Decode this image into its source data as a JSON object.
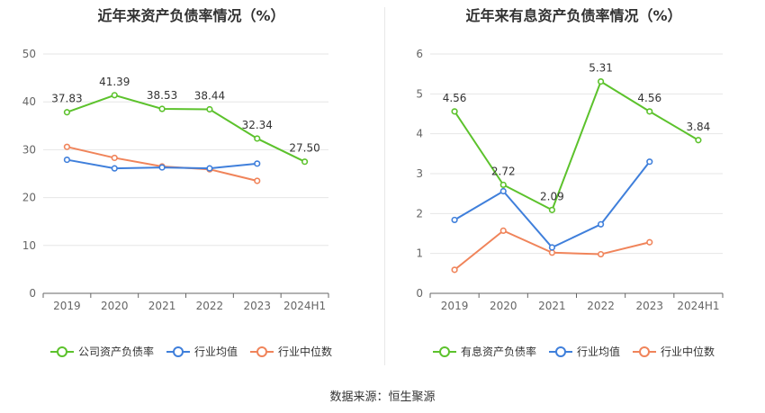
{
  "source": "数据来源：恒生聚源",
  "chart_data": [
    {
      "type": "line",
      "title": "近年来资产负债率情况（%）",
      "categories": [
        "2019",
        "2020",
        "2021",
        "2022",
        "2023",
        "2024H1"
      ],
      "ylim": [
        0,
        50
      ],
      "yticks": [
        0,
        10,
        20,
        30,
        40,
        50
      ],
      "grid": true,
      "legend_position": "bottom",
      "series": [
        {
          "name": "公司资产负债率",
          "color": "#5cc22c",
          "values": [
            37.83,
            41.39,
            38.53,
            38.44,
            32.34,
            27.5
          ],
          "labels": [
            "37.83",
            "41.39",
            "38.53",
            "38.44",
            "32.34",
            "27.50"
          ]
        },
        {
          "name": "行业均值",
          "color": "#3f7fdb",
          "values": [
            27.9,
            26.1,
            26.3,
            26.1,
            27.1,
            null
          ]
        },
        {
          "name": "行业中位数",
          "color": "#f0845a",
          "values": [
            30.6,
            28.3,
            26.5,
            25.9,
            23.5,
            null
          ]
        }
      ]
    },
    {
      "type": "line",
      "title": "近年来有息资产负债率情况（%）",
      "categories": [
        "2019",
        "2020",
        "2021",
        "2022",
        "2023",
        "2024H1"
      ],
      "ylim": [
        0,
        6
      ],
      "yticks": [
        0,
        1,
        2,
        3,
        4,
        5,
        6
      ],
      "grid": true,
      "legend_position": "bottom",
      "series": [
        {
          "name": "有息资产负债率",
          "color": "#5cc22c",
          "values": [
            4.56,
            2.72,
            2.09,
            5.31,
            4.56,
            3.84
          ],
          "labels": [
            "4.56",
            "2.72",
            "2.09",
            "5.31",
            "4.56",
            "3.84"
          ]
        },
        {
          "name": "行业均值",
          "color": "#3f7fdb",
          "values": [
            1.84,
            2.56,
            1.15,
            1.73,
            3.3,
            null
          ]
        },
        {
          "name": "行业中位数",
          "color": "#f0845a",
          "values": [
            0.59,
            1.57,
            1.02,
            0.98,
            1.28,
            null
          ]
        }
      ]
    }
  ]
}
